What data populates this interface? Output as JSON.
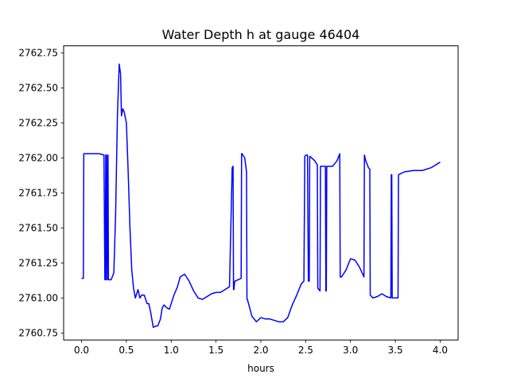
{
  "chart_data": {
    "type": "line",
    "title": "Water Depth h at gauge 46404",
    "xlabel": "hours",
    "ylabel": "",
    "xlim": [
      -0.2,
      4.2
    ],
    "ylim": [
      2760.7,
      2762.8
    ],
    "x_ticks": [
      0.0,
      0.5,
      1.0,
      1.5,
      2.0,
      2.5,
      3.0,
      3.5,
      4.0
    ],
    "x_tick_labels": [
      "0.0",
      "0.5",
      "1.0",
      "1.5",
      "2.0",
      "2.5",
      "3.0",
      "3.5",
      "4.0"
    ],
    "y_ticks": [
      2760.75,
      2761.0,
      2761.25,
      2761.5,
      2761.75,
      2762.0,
      2762.25,
      2762.5,
      2762.75
    ],
    "y_tick_labels": [
      "2760.75",
      "2761.00",
      "2761.25",
      "2761.50",
      "2761.75",
      "2762.00",
      "2762.25",
      "2762.50",
      "2762.75"
    ],
    "grid": false,
    "series": [
      {
        "color": "#0000ff",
        "x": [
          0.0,
          0.02,
          0.025,
          0.1,
          0.2,
          0.25,
          0.26,
          0.265,
          0.27,
          0.275,
          0.28,
          0.285,
          0.29,
          0.295,
          0.3,
          0.33,
          0.36,
          0.38,
          0.4,
          0.42,
          0.435,
          0.445,
          0.46,
          0.475,
          0.5,
          0.52,
          0.54,
          0.56,
          0.58,
          0.6,
          0.63,
          0.65,
          0.67,
          0.7,
          0.73,
          0.75,
          0.77,
          0.8,
          0.83,
          0.85,
          0.88,
          0.9,
          0.92,
          0.95,
          0.98,
          1.0,
          1.03,
          1.07,
          1.1,
          1.15,
          1.2,
          1.25,
          1.3,
          1.35,
          1.4,
          1.45,
          1.5,
          1.55,
          1.6,
          1.65,
          1.68,
          1.69,
          1.695,
          1.7,
          1.705,
          1.71,
          1.78,
          1.785,
          1.79,
          1.82,
          1.84,
          1.845,
          1.85,
          1.9,
          1.95,
          2.0,
          2.05,
          2.1,
          2.15,
          2.2,
          2.25,
          2.3,
          2.35,
          2.4,
          2.45,
          2.48,
          2.49,
          2.5,
          2.52,
          2.53,
          2.54,
          2.545,
          2.55,
          2.6,
          2.63,
          2.635,
          2.66,
          2.665,
          2.72,
          2.725,
          2.73,
          2.735,
          2.8,
          2.85,
          2.88,
          2.885,
          2.9,
          2.95,
          3.0,
          3.05,
          3.1,
          3.15,
          3.155,
          3.17,
          3.2,
          3.215,
          3.22,
          3.25,
          3.3,
          3.35,
          3.4,
          3.45,
          3.455,
          3.46,
          3.465,
          3.47,
          3.5,
          3.53,
          3.535,
          3.6,
          3.7,
          3.8,
          3.9,
          4.0
        ],
        "y": [
          2761.14,
          2761.14,
          2762.03,
          2762.03,
          2762.03,
          2762.02,
          2761.13,
          2761.13,
          2762.02,
          2762.02,
          2761.13,
          2761.13,
          2762.02,
          2762.02,
          2761.13,
          2761.13,
          2761.18,
          2761.6,
          2762.3,
          2762.67,
          2762.6,
          2762.3,
          2762.35,
          2762.33,
          2762.25,
          2761.9,
          2761.5,
          2761.2,
          2761.07,
          2761.0,
          2761.06,
          2761.0,
          2761.02,
          2761.02,
          2760.96,
          2760.96,
          2760.9,
          2760.79,
          2760.8,
          2760.8,
          2760.85,
          2760.93,
          2760.95,
          2760.93,
          2760.92,
          2760.96,
          2761.02,
          2761.08,
          2761.15,
          2761.17,
          2761.12,
          2761.05,
          2761.0,
          2760.99,
          2761.01,
          2761.03,
          2761.04,
          2761.04,
          2761.06,
          2761.08,
          2761.93,
          2761.94,
          2761.06,
          2761.06,
          2761.1,
          2761.12,
          2761.14,
          2762.03,
          2762.03,
          2762.0,
          2761.9,
          2760.99,
          2760.99,
          2760.87,
          2760.83,
          2760.86,
          2760.85,
          2760.85,
          2760.84,
          2760.83,
          2760.83,
          2760.86,
          2760.95,
          2761.02,
          2761.1,
          2761.12,
          2762.01,
          2762.02,
          2762.02,
          2761.12,
          2761.12,
          2762.01,
          2762.01,
          2761.98,
          2761.95,
          2761.07,
          2761.05,
          2761.94,
          2761.94,
          2761.05,
          2761.05,
          2761.94,
          2761.94,
          2761.98,
          2762.03,
          2761.15,
          2761.15,
          2761.2,
          2761.28,
          2761.27,
          2761.22,
          2761.15,
          2762.02,
          2761.98,
          2761.93,
          2761.92,
          2761.02,
          2761.0,
          2761.01,
          2761.03,
          2761.01,
          2761.0,
          2761.88,
          2761.88,
          2761.0,
          2761.0,
          2761.0,
          2761.0,
          2761.88,
          2761.9,
          2761.91,
          2761.91,
          2761.93,
          2761.97
        ]
      }
    ]
  }
}
